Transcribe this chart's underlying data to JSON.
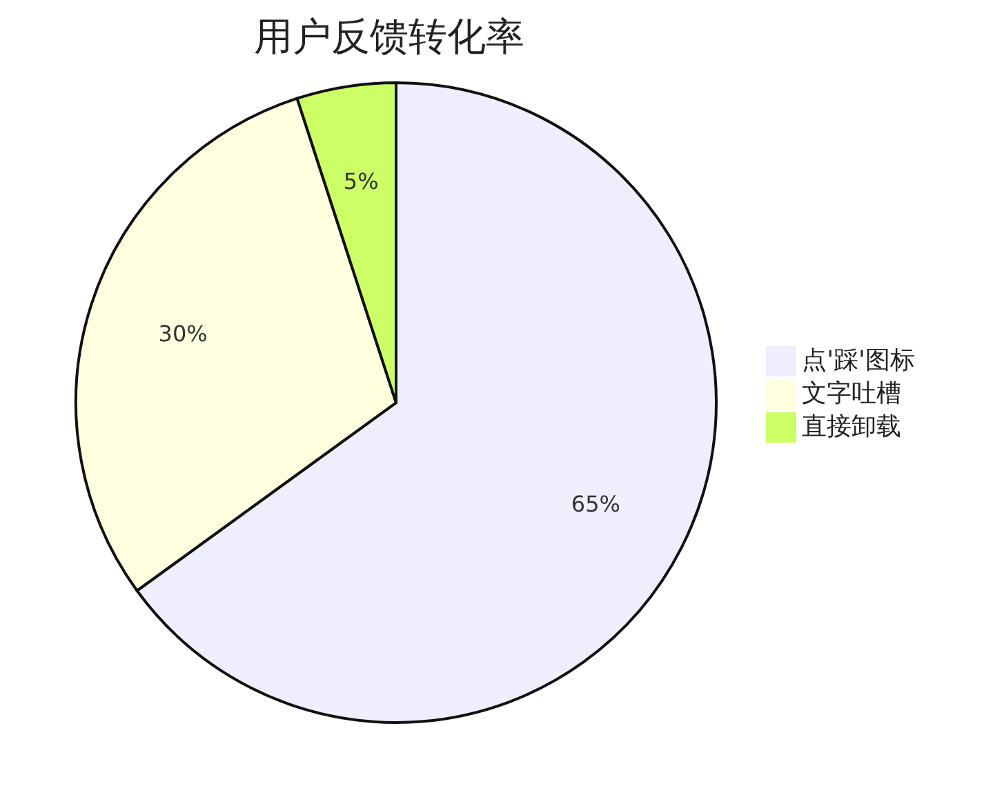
{
  "chart_data": {
    "type": "pie",
    "title": "用户反馈转化率",
    "categories": [
      "点'踩'图标",
      "文字吐槽",
      "直接卸载"
    ],
    "values": [
      65,
      30,
      5
    ],
    "colors": [
      "#eeeefc",
      "#ffffe0",
      "#ccff66"
    ],
    "value_labels": [
      "65%",
      "30%",
      "5%"
    ],
    "legend": "right"
  }
}
